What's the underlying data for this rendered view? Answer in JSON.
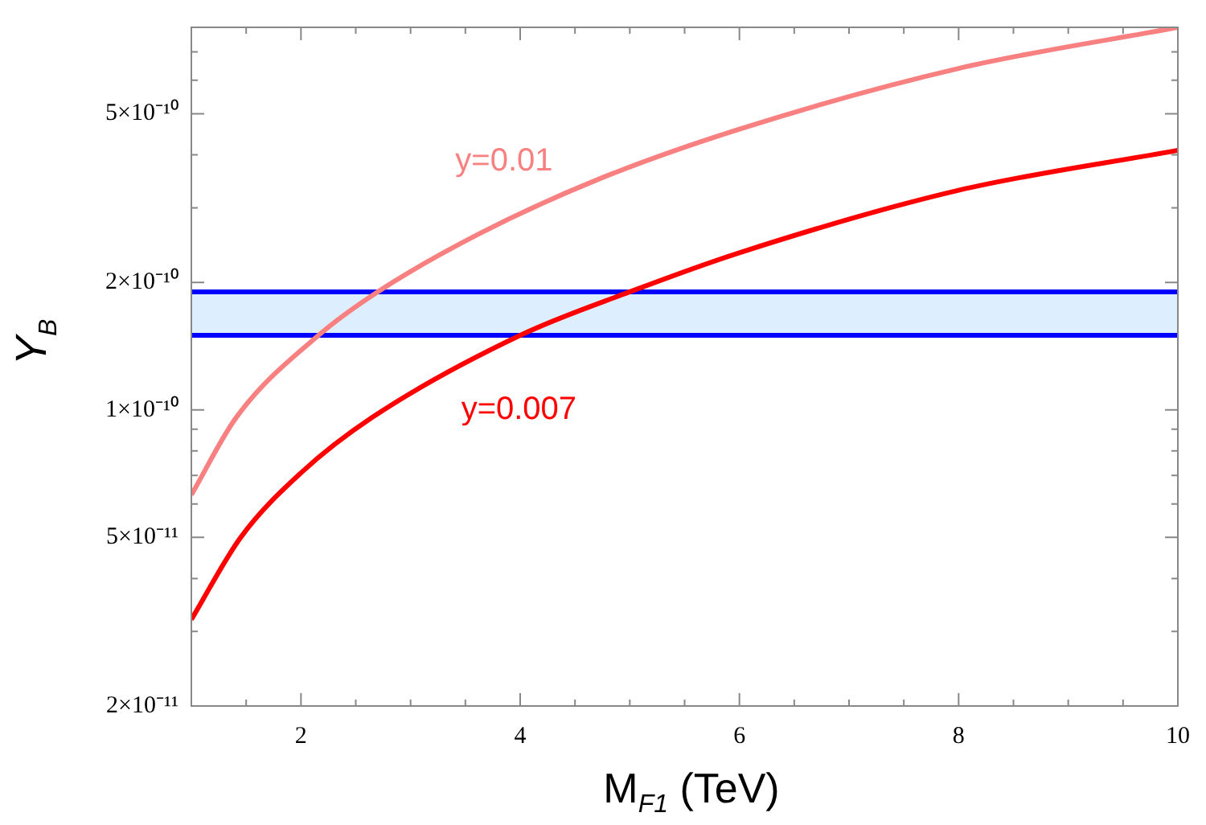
{
  "chart_data": {
    "type": "line",
    "xlabel": "M$_{F1}$ (TeV)",
    "ylabel": "Y$_{B}$",
    "log": "y",
    "legend": false,
    "marker": "none",
    "line_style": "solid",
    "xlim": [
      1,
      10
    ],
    "xticks": [
      {
        "value": 1.5,
        "label": null
      },
      2,
      {
        "value": 2.5,
        "label": null
      },
      {
        "value": 3,
        "label": null
      },
      {
        "value": 3.5,
        "label": null
      },
      4,
      {
        "value": 4.5,
        "label": null
      },
      {
        "value": 5,
        "label": null
      },
      {
        "value": 5.5,
        "label": null
      },
      6,
      {
        "value": 6.5,
        "label": null
      },
      {
        "value": 7,
        "label": null
      },
      {
        "value": 7.5,
        "label": null
      },
      8,
      {
        "value": 8.5,
        "label": null
      },
      {
        "value": 9,
        "label": null
      },
      {
        "value": 9.5,
        "label": null
      },
      10
    ],
    "ylim": [
      2e-11,
      8e-10
    ],
    "yticks": [
      {
        "value": 2e-11,
        "label": "2×10⁻¹¹"
      },
      {
        "value": 3e-11,
        "label": null
      },
      {
        "value": 4e-11,
        "label": null
      },
      {
        "value": 5e-11,
        "label": "5×10⁻¹¹"
      },
      {
        "value": 6e-11,
        "label": null
      },
      {
        "value": 7e-11,
        "label": null
      },
      {
        "value": 8e-11,
        "label": null
      },
      {
        "value": 9e-11,
        "label": null
      },
      {
        "value": 1e-10,
        "label": "1×10⁻¹⁰"
      },
      {
        "value": 2e-10,
        "label": "2×10⁻¹⁰"
      },
      {
        "value": 3e-10,
        "label": null
      },
      {
        "value": 4e-10,
        "label": null
      },
      {
        "value": 5e-10,
        "label": "5×10⁻¹⁰"
      },
      {
        "value": 6e-10,
        "label": null
      },
      {
        "value": 7e-10,
        "label": null
      }
    ],
    "bands": [
      {
        "axis": "y",
        "from": 1.5e-10,
        "to": 1.9e-10,
        "color": "#ddeeff"
      }
    ],
    "ref_lines": [
      {
        "axis": "y",
        "value": 1.5e-10,
        "color": "#0000ff"
      },
      {
        "axis": "y",
        "value": 1.9e-10,
        "color": "#0000ff"
      }
    ],
    "series": [
      {
        "name": "y=0.01",
        "color": "#f88080",
        "x": [
          1,
          1.41,
          2.16,
          2.7,
          3.62,
          4.71,
          6,
          8,
          10
        ],
        "values": [
          6.3e-11,
          9.6e-11,
          1.5e-10,
          1.9e-10,
          2.6e-10,
          3.5e-10,
          4.6e-10,
          6.4e-10,
          8e-10
        ]
      },
      {
        "name": "y=0.007",
        "color": "#ff0000",
        "x": [
          1,
          1.45,
          2,
          2.65,
          4,
          5,
          6,
          8,
          10
        ],
        "values": [
          3.2e-11,
          5e-11,
          7.1e-11,
          9.6e-11,
          1.5e-10,
          1.9e-10,
          2.35e-10,
          3.3e-10,
          4.1e-10
        ]
      }
    ]
  }
}
